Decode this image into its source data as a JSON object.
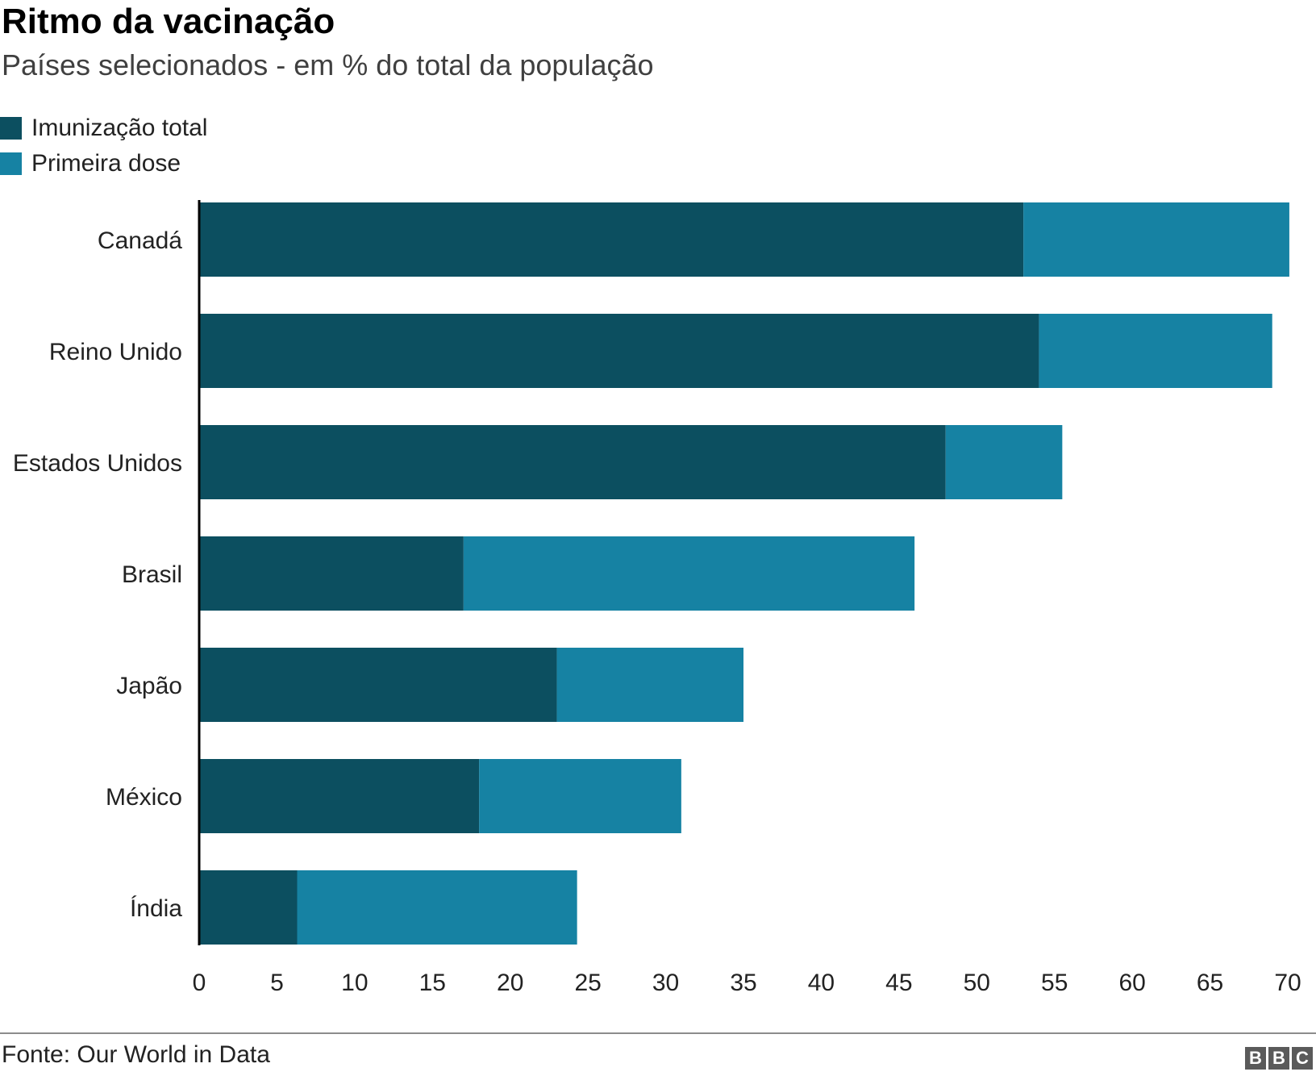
{
  "chart_data": {
    "type": "bar",
    "orientation": "horizontal",
    "stacked": true,
    "title": "Ritmo da vacinação",
    "subtitle": "Países selecionados - em % do total da população",
    "categories": [
      "Canadá",
      "Reino Unido",
      "Estados Unidos",
      "Brasil",
      "Japão",
      "México",
      "Índia"
    ],
    "series": [
      {
        "name": "Imunização total",
        "color": "#0c4f60",
        "values": [
          53,
          54,
          48,
          17,
          23,
          18,
          6.3
        ]
      },
      {
        "name": "Primeira dose",
        "color": "#1682a3",
        "values": [
          17.1,
          15,
          7.5,
          29,
          12,
          13,
          18
        ]
      }
    ],
    "xlim": [
      0,
      70
    ],
    "xticks": [
      0,
      5,
      10,
      15,
      20,
      25,
      30,
      35,
      40,
      45,
      50,
      55,
      60,
      65,
      70
    ],
    "grid": false,
    "legend_position": "top-left"
  },
  "source": "Fonte: Our World in Data",
  "logo": [
    "B",
    "B",
    "C"
  ]
}
